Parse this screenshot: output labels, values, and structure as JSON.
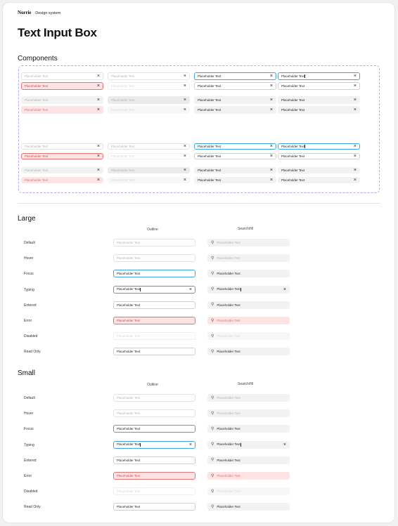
{
  "header": {
    "logo": "Norrie",
    "breadcrumb": "Design system"
  },
  "title": "Text Input Box",
  "components": {
    "heading": "Components",
    "placeholder": "Placeholder Text",
    "filled_value": "Placeholder Text"
  },
  "large": {
    "heading": "Large",
    "col_outline": "Outline",
    "col_searchfill": "Search/fill",
    "states": [
      "Default",
      "Hover",
      "Focus",
      "Typing",
      "Entered",
      "Error",
      "Disabled",
      "Read Only"
    ],
    "placeholder": "Placeholder Text"
  },
  "small": {
    "heading": "Small",
    "col_outline": "Outline",
    "col_searchfill": "Search/fill",
    "states": [
      "Default",
      "Hover",
      "Focus",
      "Typing",
      "Entered",
      "Error",
      "Disabled",
      "Read Only"
    ],
    "placeholder": "Placeholder Text"
  },
  "icons": {
    "clear": "close-icon",
    "search": "search-icon"
  },
  "colors": {
    "focus": "#3ba7e0",
    "error": "#e07575",
    "error_bg": "#fde3e3",
    "fill": "#f2f2f2",
    "dashed_border": "#b9a6f2"
  }
}
